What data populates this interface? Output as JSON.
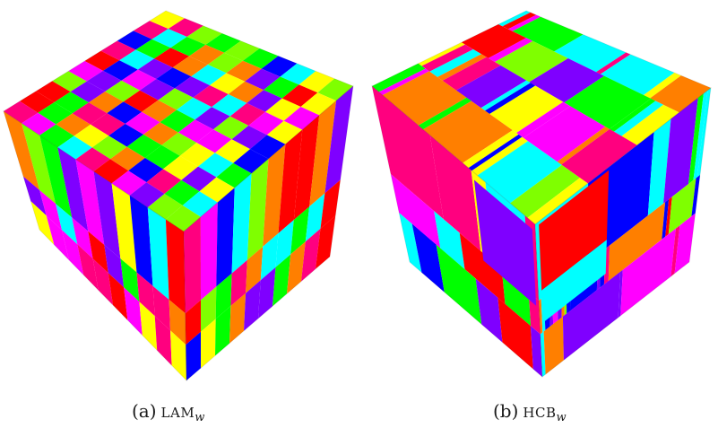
{
  "figures": [
    {
      "tag": "(a)",
      "method": "LAM",
      "subscript": "w",
      "palette": [
        "#ff0000",
        "#ff7f00",
        "#ffff00",
        "#7fff00",
        "#00ff00",
        "#00ffff",
        "#0000ff",
        "#7f00ff",
        "#ff00ff",
        "#ff007f"
      ]
    },
    {
      "tag": "(b)",
      "method": "HCB",
      "subscript": "w",
      "palette": [
        "#ff0000",
        "#ff7f00",
        "#ffff00",
        "#7fff00",
        "#00ff00",
        "#00ffff",
        "#0000ff",
        "#7f00ff",
        "#ff00ff",
        "#ff007f"
      ]
    }
  ]
}
